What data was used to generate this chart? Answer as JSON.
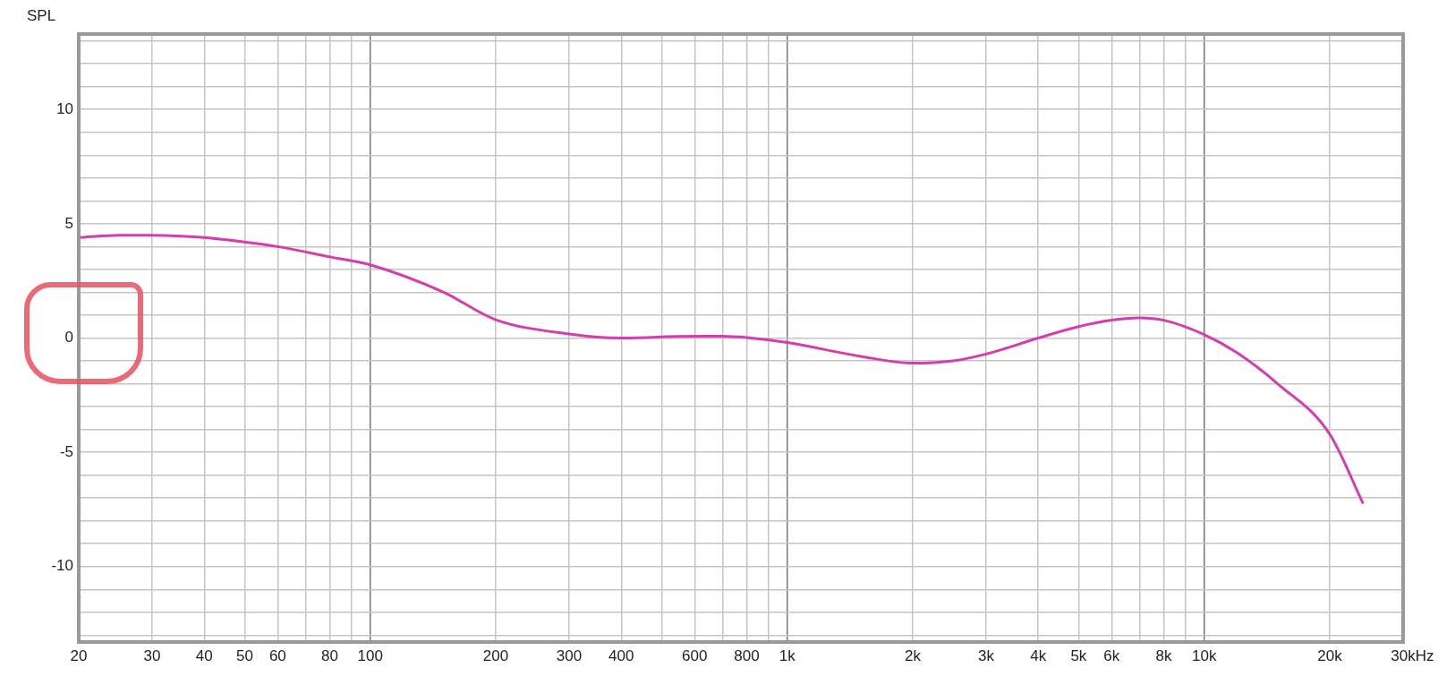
{
  "chart_data": {
    "type": "line",
    "ylabel": "SPL",
    "xlim": [
      20,
      30000
    ],
    "ylim": [
      -13.3,
      13.3
    ],
    "log": "x",
    "grid": true,
    "legend": false,
    "marker": "none",
    "line_style": "solid",
    "xticks": [
      20,
      30,
      40,
      50,
      60,
      {
        "value": 70,
        "label": null
      },
      80,
      {
        "value": 90,
        "label": null
      },
      100,
      200,
      300,
      400,
      {
        "value": 500,
        "label": null
      },
      600,
      {
        "value": 700,
        "label": null
      },
      800,
      {
        "value": 900,
        "label": null
      },
      {
        "value": 1000,
        "label": "1k"
      },
      {
        "value": 2000,
        "label": "2k"
      },
      {
        "value": 3000,
        "label": "3k"
      },
      {
        "value": 4000,
        "label": "4k"
      },
      {
        "value": 5000,
        "label": "5k"
      },
      {
        "value": 6000,
        "label": "6k"
      },
      {
        "value": 7000,
        "label": null
      },
      {
        "value": 8000,
        "label": "8k"
      },
      {
        "value": 9000,
        "label": null
      },
      {
        "value": 10000,
        "label": "10k"
      },
      {
        "value": 20000,
        "label": "20k"
      },
      {
        "value": 30000,
        "label": "30k"
      }
    ],
    "xlabel": "Hz",
    "yticks": [
      {
        "value": -13,
        "label": null
      },
      {
        "value": -12,
        "label": null
      },
      {
        "value": -11,
        "label": null
      },
      -10,
      {
        "value": -9,
        "label": null
      },
      {
        "value": -8,
        "label": null
      },
      {
        "value": -7,
        "label": null
      },
      {
        "value": -6,
        "label": null
      },
      -5,
      {
        "value": -4,
        "label": null
      },
      {
        "value": -3,
        "label": null
      },
      {
        "value": -2,
        "label": null
      },
      {
        "value": -1,
        "label": null
      },
      0,
      {
        "value": 1,
        "label": null
      },
      {
        "value": 2,
        "label": null
      },
      {
        "value": 3,
        "label": null
      },
      {
        "value": 4,
        "label": null
      },
      5,
      {
        "value": 6,
        "label": null
      },
      {
        "value": 7,
        "label": null
      },
      {
        "value": 8,
        "label": null
      },
      {
        "value": 9,
        "label": null
      },
      10,
      {
        "value": 11,
        "label": null
      },
      {
        "value": 12,
        "label": null
      },
      {
        "value": 13,
        "label": null
      }
    ],
    "x": [
      20,
      25,
      30,
      40,
      50,
      60,
      80,
      100,
      150,
      200,
      300,
      400,
      600,
      700,
      800,
      1000,
      1500,
      2000,
      2500,
      3000,
      4000,
      5000,
      6000,
      7000,
      8000,
      10000,
      12000,
      15000,
      20000,
      24000
    ],
    "series": [
      {
        "color": "#d63cae",
        "values": [
          4.4,
          4.5,
          4.5,
          4.4,
          4.2,
          4.0,
          3.55,
          3.2,
          2.0,
          0.8,
          0.18,
          0.0,
          0.08,
          0.08,
          0.02,
          -0.2,
          -0.8,
          -1.1,
          -1.0,
          -0.7,
          0.0,
          0.5,
          0.78,
          0.88,
          0.78,
          0.15,
          -0.65,
          -2.0,
          -4.2,
          -7.2
        ]
      }
    ]
  }
}
